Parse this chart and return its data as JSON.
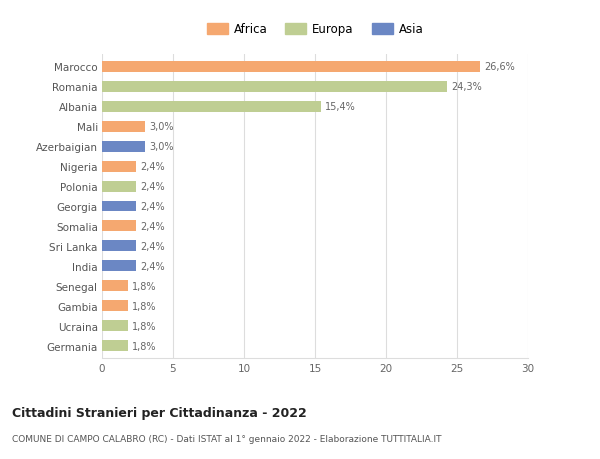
{
  "countries": [
    "Marocco",
    "Romania",
    "Albania",
    "Mali",
    "Azerbaigian",
    "Nigeria",
    "Polonia",
    "Georgia",
    "Somalia",
    "Sri Lanka",
    "India",
    "Senegal",
    "Gambia",
    "Ucraina",
    "Germania"
  ],
  "values": [
    26.6,
    24.3,
    15.4,
    3.0,
    3.0,
    2.4,
    2.4,
    2.4,
    2.4,
    2.4,
    2.4,
    1.8,
    1.8,
    1.8,
    1.8
  ],
  "labels": [
    "26,6%",
    "24,3%",
    "15,4%",
    "3,0%",
    "3,0%",
    "2,4%",
    "2,4%",
    "2,4%",
    "2,4%",
    "2,4%",
    "2,4%",
    "1,8%",
    "1,8%",
    "1,8%",
    "1,8%"
  ],
  "continent": [
    "Africa",
    "Europa",
    "Europa",
    "Africa",
    "Asia",
    "Africa",
    "Europa",
    "Asia",
    "Africa",
    "Asia",
    "Asia",
    "Africa",
    "Africa",
    "Europa",
    "Europa"
  ],
  "colors": {
    "Africa": "#F5A870",
    "Europa": "#BFCE93",
    "Asia": "#6B87C4"
  },
  "legend_labels": [
    "Africa",
    "Europa",
    "Asia"
  ],
  "legend_colors": [
    "#F5A870",
    "#BFCE93",
    "#6B87C4"
  ],
  "title": "Cittadini Stranieri per Cittadinanza - 2022",
  "subtitle": "COMUNE DI CAMPO CALABRO (RC) - Dati ISTAT al 1° gennaio 2022 - Elaborazione TUTTITALIA.IT",
  "xlim": [
    0,
    30
  ],
  "xticks": [
    0,
    5,
    10,
    15,
    20,
    25,
    30
  ],
  "background_color": "#ffffff",
  "grid_color": "#dddddd"
}
